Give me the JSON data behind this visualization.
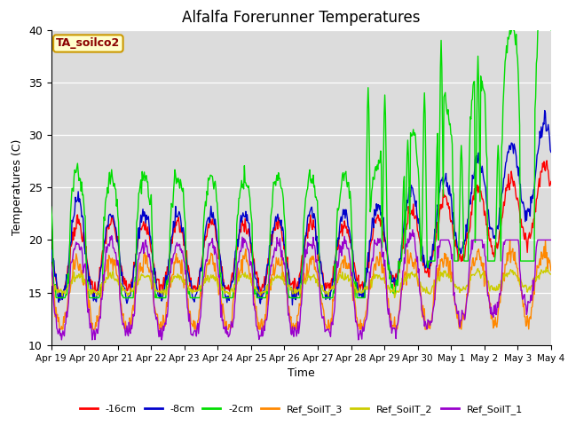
{
  "title": "Alfalfa Forerunner Temperatures",
  "xlabel": "Time",
  "ylabel": "Temperatures (C)",
  "ylim": [
    10,
    40
  ],
  "annotation_text": "TA_soilco2",
  "annotation_color": "#8b0000",
  "annotation_bg": "#ffffcc",
  "annotation_edge": "#cc9900",
  "series": [
    {
      "label": "-16cm",
      "color": "#ff0000"
    },
    {
      "label": "-8cm",
      "color": "#0000cc"
    },
    {
      "label": "-2cm",
      "color": "#00dd00"
    },
    {
      "label": "Ref_SoilT_3",
      "color": "#ff8800"
    },
    {
      "label": "Ref_SoilT_2",
      "color": "#cccc00"
    },
    {
      "label": "Ref_SoilT_1",
      "color": "#9900cc"
    }
  ],
  "xtick_labels": [
    "Apr 19",
    "Apr 20",
    "Apr 21",
    "Apr 22",
    "Apr 23",
    "Apr 24",
    "Apr 25",
    "Apr 26",
    "Apr 27",
    "Apr 28",
    "Apr 29",
    "Apr 30",
    "May 1",
    "May 2",
    "May 3",
    "May 4"
  ],
  "plot_bg": "#dcdcdc",
  "fig_bg": "#ffffff",
  "grid_color": "#ffffff",
  "linewidth": 1.0
}
